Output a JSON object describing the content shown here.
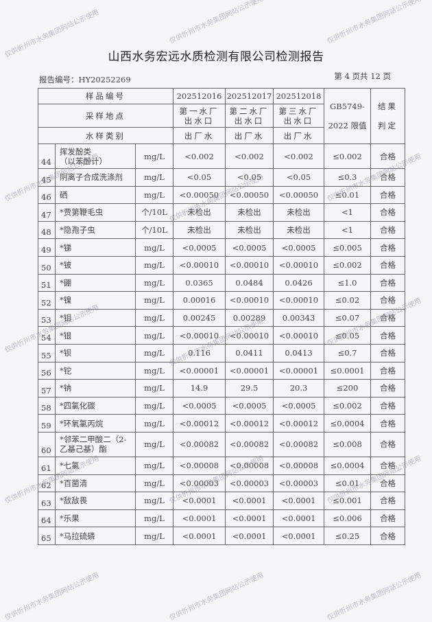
{
  "title": "山西水务宏远水质检测有限公司检测报告",
  "report_number": "报告编号：HY20252269",
  "page_info": "第 4 页共 12 页",
  "watermark": "仅供忻州市水务集团网站公示使用",
  "header": {
    "sample_no_label": "样品编号",
    "location_label": "采样地点",
    "type_label": "水样类别",
    "limit_label_1": "GB5749-",
    "limit_label_2": "2022 限值",
    "result_label_1": "结果",
    "result_label_2": "判定",
    "samples": [
      {
        "no": "202512016",
        "loc1": "第一水厂",
        "loc2": "出水口",
        "type": "出厂水"
      },
      {
        "no": "202512017",
        "loc1": "第二水厂",
        "loc2": "出水口",
        "type": "出厂水"
      },
      {
        "no": "202512018",
        "loc1": "第三水厂",
        "loc2": "出水口",
        "type": "出厂水"
      }
    ]
  },
  "rows": [
    {
      "n": "44",
      "name": "挥发酚类\n（以苯酚计）",
      "unit": "mg/L",
      "v": [
        "<0.002",
        "<0.002",
        "<0.002"
      ],
      "limit": "≤0.002",
      "result": "合格"
    },
    {
      "n": "45",
      "name": "阴离子合成洗涤剂",
      "unit": "mg/L",
      "v": [
        "<0.05",
        "<0.05",
        "<0.05"
      ],
      "limit": "≤0.3",
      "result": "合格"
    },
    {
      "n": "46",
      "name": "硒",
      "unit": "mg/L",
      "v": [
        "<0.00050",
        "<0.00050",
        "<0.00050"
      ],
      "limit": "≤0.01",
      "result": "合格"
    },
    {
      "n": "47",
      "name": "*贾第鞭毛虫",
      "unit": "个/10L",
      "v": [
        "未检出",
        "未检出",
        "未检出"
      ],
      "limit": "<1",
      "result": "合格"
    },
    {
      "n": "48",
      "name": "*隐孢子虫",
      "unit": "个/10L",
      "v": [
        "未检出",
        "未检出",
        "未检出"
      ],
      "limit": "<1",
      "result": "合格"
    },
    {
      "n": "49",
      "name": "*锑",
      "unit": "mg/L",
      "v": [
        "<0.0005",
        "<0.0005",
        "<0.0005"
      ],
      "limit": "≤0.005",
      "result": "合格"
    },
    {
      "n": "50",
      "name": "*铍",
      "unit": "mg/L",
      "v": [
        "<0.00010",
        "<0.00010",
        "<0.00010"
      ],
      "limit": "≤0.002",
      "result": "合格"
    },
    {
      "n": "51",
      "name": "*硼",
      "unit": "mg/L",
      "v": [
        "0.0365",
        "0.0484",
        "0.0426"
      ],
      "limit": "≤1.0",
      "result": "合格"
    },
    {
      "n": "52",
      "name": "*镍",
      "unit": "mg/L",
      "v": [
        "0.00016",
        "<0.00010",
        "<0.00010"
      ],
      "limit": "≤0.02",
      "result": "合格"
    },
    {
      "n": "53",
      "name": "*钼",
      "unit": "mg/L",
      "v": [
        "0.00245",
        "0.00289",
        "0.00343"
      ],
      "limit": "≤0.07",
      "result": "合格"
    },
    {
      "n": "54",
      "name": "*银",
      "unit": "mg/L",
      "v": [
        "<0.00010",
        "<0.00010",
        "<0.00010"
      ],
      "limit": "≤0.05",
      "result": "合格"
    },
    {
      "n": "55",
      "name": "*钡",
      "unit": "mg/L",
      "v": [
        "0.116",
        "0.0411",
        "0.0413"
      ],
      "limit": "≤0.7",
      "result": "合格"
    },
    {
      "n": "56",
      "name": "*铊",
      "unit": "mg/L",
      "v": [
        "<0.00001",
        "<0.00001",
        "<0.00001"
      ],
      "limit": "≤0.0001",
      "result": "合格"
    },
    {
      "n": "57",
      "name": "*钠",
      "unit": "mg/L",
      "v": [
        "14.9",
        "29.5",
        "20.3"
      ],
      "limit": "≤200",
      "result": "合格"
    },
    {
      "n": "58",
      "name": "*四氯化碳",
      "unit": "mg/L",
      "v": [
        "<0.0005",
        "<0.0005",
        "<0.0005"
      ],
      "limit": "≤0.002",
      "result": "合格"
    },
    {
      "n": "59",
      "name": "*环氧氯丙烷",
      "unit": "mg/L",
      "v": [
        "<0.00012",
        "<0.00012",
        "<0.00012"
      ],
      "limit": "≤0.0004",
      "result": "合格"
    },
    {
      "n": "60",
      "name": "*邻苯二甲酸二（2-\n乙基己基）酯",
      "unit": "mg/L",
      "v": [
        "<0.00082",
        "<0.00082",
        "<0.00082"
      ],
      "limit": "≤0.008",
      "result": "合格"
    },
    {
      "n": "61",
      "name": "*七氯",
      "unit": "mg/L",
      "v": [
        "<0.00008",
        "<0.00008",
        "<0.00008"
      ],
      "limit": "≤0.0004",
      "result": "合格"
    },
    {
      "n": "62",
      "name": "*百菌清",
      "unit": "mg/L",
      "v": [
        "<0.00003",
        "<0.00003",
        "<0.00003"
      ],
      "limit": "≤0.01",
      "result": "合格"
    },
    {
      "n": "63",
      "name": "*敌敌畏",
      "unit": "mg/L",
      "v": [
        "<0.0001",
        "<0.0001",
        "<0.0001"
      ],
      "limit": "≤0.001",
      "result": "合格"
    },
    {
      "n": "64",
      "name": "*乐果",
      "unit": "mg/L",
      "v": [
        "<0.0001",
        "<0.0001",
        "<0.0001"
      ],
      "limit": "≤0.006",
      "result": "合格"
    },
    {
      "n": "65",
      "name": "*马拉硫磷",
      "unit": "mg/L",
      "v": [
        "<0.0001",
        "<0.0001",
        "<0.0001"
      ],
      "limit": "≤0.25",
      "result": "合格"
    }
  ]
}
